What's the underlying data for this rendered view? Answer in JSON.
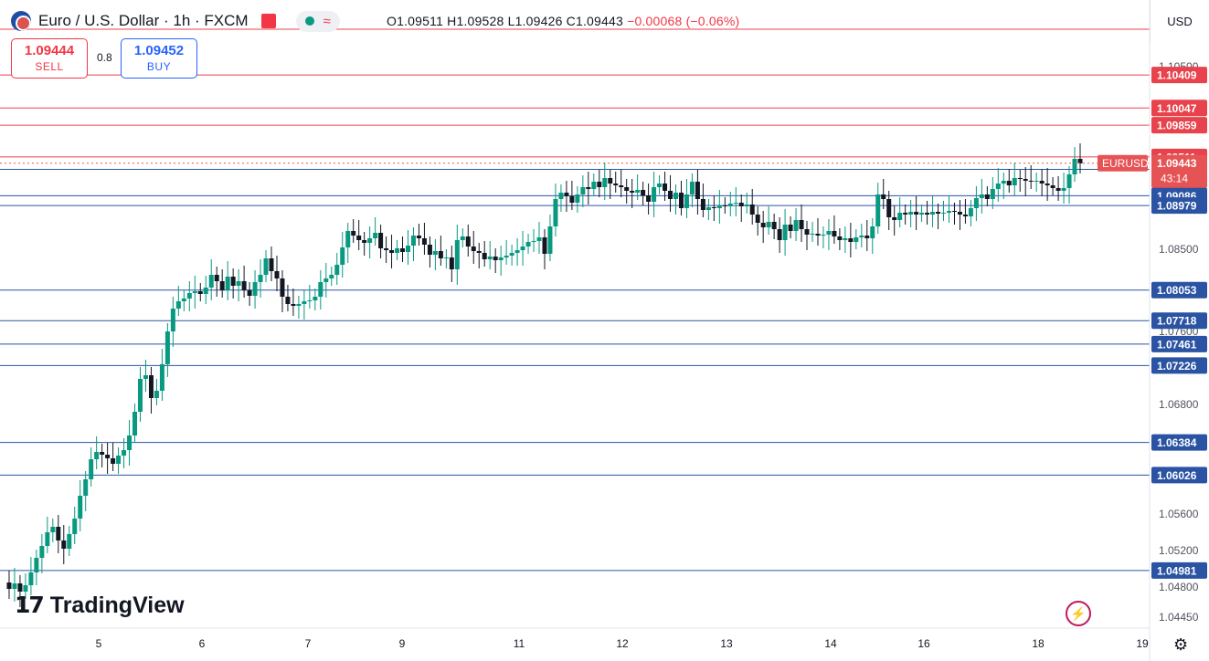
{
  "header": {
    "symbol_title": "Euro / U.S. Dollar · 1h · FXCM",
    "open": "O1.09511",
    "high": "H1.09528",
    "low": "L1.09426",
    "close": "C1.09443",
    "change": "−0.00068 (−0.06%)"
  },
  "trade": {
    "sell_price": "1.09444",
    "sell_label": "SELL",
    "spread": "0.8",
    "buy_price": "1.09452",
    "buy_label": "BUY"
  },
  "currency_label": "USD",
  "logo_text": "TradingView",
  "colors": {
    "up": "#089981",
    "down": "#131722",
    "resistance": "#e8434d",
    "support": "#2a53a3",
    "current": "#e65355"
  },
  "chart_data": {
    "type": "candlestick",
    "title": "Euro / U.S. Dollar · 1h · FXCM",
    "ylim": [
      1.0435,
      1.1095
    ],
    "y_ticks": [
      "1.10500",
      "1.08500",
      "1.07600",
      "1.06800",
      "1.05600",
      "1.05200",
      "1.04800",
      "1.04450"
    ],
    "x_ticks": [
      "5",
      "6",
      "7",
      "9",
      "11",
      "12",
      "13",
      "14",
      "16",
      "18",
      "19"
    ],
    "resistance_levels": [
      "1.10409",
      "1.10047",
      "1.09859",
      "1.09511"
    ],
    "support_levels": [
      "1.09375",
      "1.09086",
      "1.08979",
      "1.08053",
      "1.07718",
      "1.07461",
      "1.07226",
      "1.06384",
      "1.06026",
      "1.04981"
    ],
    "current": {
      "name": "EURUSD",
      "price": "1.09443",
      "countdown": "43:14"
    },
    "price_path": [
      [
        0,
        1.0485
      ],
      [
        6,
        1.0478
      ],
      [
        12,
        1.0484
      ],
      [
        18,
        1.0475
      ],
      [
        24,
        1.0482
      ],
      [
        30,
        1.0496
      ],
      [
        36,
        1.0512
      ],
      [
        42,
        1.0525
      ],
      [
        48,
        1.054
      ],
      [
        54,
        1.0546
      ],
      [
        60,
        1.0531
      ],
      [
        66,
        1.0522
      ],
      [
        72,
        1.0538
      ],
      [
        78,
        1.0555
      ],
      [
        84,
        1.058
      ],
      [
        90,
        1.0598
      ],
      [
        96,
        1.062
      ],
      [
        102,
        1.0628
      ],
      [
        108,
        1.0625
      ],
      [
        114,
        1.0621
      ],
      [
        120,
        1.0615
      ],
      [
        126,
        1.0624
      ],
      [
        132,
        1.063
      ],
      [
        138,
        1.0646
      ],
      [
        144,
        1.0672
      ],
      [
        150,
        1.0708
      ],
      [
        156,
        1.0712
      ],
      [
        162,
        1.0687
      ],
      [
        168,
        1.0695
      ],
      [
        174,
        1.0724
      ],
      [
        180,
        1.076
      ],
      [
        186,
        1.0785
      ],
      [
        192,
        1.0793
      ],
      [
        198,
        1.0796
      ],
      [
        204,
        1.0802
      ],
      [
        210,
        1.0804
      ],
      [
        216,
        1.0801
      ],
      [
        222,
        1.0808
      ],
      [
        228,
        1.0822
      ],
      [
        234,
        1.0815
      ],
      [
        240,
        1.0805
      ],
      [
        246,
        1.082
      ],
      [
        252,
        1.081
      ],
      [
        258,
        1.0815
      ],
      [
        264,
        1.0805
      ],
      [
        270,
        1.0799
      ],
      [
        276,
        1.0814
      ],
      [
        282,
        1.0822
      ],
      [
        288,
        1.084
      ],
      [
        294,
        1.0826
      ],
      [
        300,
        1.0818
      ],
      [
        306,
        1.0798
      ],
      [
        312,
        1.079
      ],
      [
        318,
        1.0788
      ],
      [
        324,
        1.079
      ],
      [
        330,
        1.0793
      ],
      [
        336,
        1.0794
      ],
      [
        342,
        1.0798
      ],
      [
        348,
        1.0814
      ],
      [
        354,
        1.0818
      ],
      [
        360,
        1.0822
      ],
      [
        366,
        1.0833
      ],
      [
        372,
        1.0852
      ],
      [
        378,
        1.087
      ],
      [
        384,
        1.0865
      ],
      [
        390,
        1.086
      ],
      [
        396,
        1.0857
      ],
      [
        402,
        1.0862
      ],
      [
        408,
        1.0868
      ],
      [
        414,
        1.0851
      ],
      [
        420,
        1.0849
      ],
      [
        426,
        1.0846
      ],
      [
        432,
        1.0851
      ],
      [
        438,
        1.0847
      ],
      [
        444,
        1.0854
      ],
      [
        450,
        1.0865
      ],
      [
        456,
        1.0862
      ],
      [
        462,
        1.0855
      ],
      [
        468,
        1.0844
      ],
      [
        474,
        1.0848
      ],
      [
        480,
        1.084
      ],
      [
        486,
        1.0841
      ],
      [
        492,
        1.0828
      ],
      [
        498,
        1.086
      ],
      [
        504,
        1.0864
      ],
      [
        510,
        1.0853
      ],
      [
        516,
        1.0848
      ],
      [
        522,
        1.0846
      ],
      [
        528,
        1.0839
      ],
      [
        534,
        1.0842
      ],
      [
        540,
        1.0838
      ],
      [
        546,
        1.0841
      ],
      [
        552,
        1.0843
      ],
      [
        558,
        1.0846
      ],
      [
        564,
        1.0849
      ],
      [
        570,
        1.0853
      ],
      [
        576,
        1.0858
      ],
      [
        582,
        1.0859
      ],
      [
        588,
        1.0863
      ],
      [
        594,
        1.0845
      ],
      [
        600,
        1.0875
      ],
      [
        606,
        1.0905
      ],
      [
        612,
        1.0912
      ],
      [
        618,
        1.0908
      ],
      [
        624,
        1.0901
      ],
      [
        630,
        1.091
      ],
      [
        636,
        1.0918
      ],
      [
        642,
        1.0916
      ],
      [
        648,
        1.0924
      ],
      [
        654,
        1.0918
      ],
      [
        660,
        1.0928
      ],
      [
        666,
        1.0922
      ],
      [
        672,
        1.092
      ],
      [
        678,
        1.0918
      ],
      [
        684,
        1.0914
      ],
      [
        690,
        1.0912
      ],
      [
        696,
        1.0915
      ],
      [
        702,
        1.0909
      ],
      [
        708,
        1.0902
      ],
      [
        714,
        1.0918
      ],
      [
        720,
        1.0922
      ],
      [
        726,
        1.0914
      ],
      [
        732,
        1.0905
      ],
      [
        738,
        1.0912
      ],
      [
        744,
        1.0895
      ],
      [
        750,
        1.091
      ],
      [
        756,
        1.0924
      ],
      [
        762,
        1.0905
      ],
      [
        768,
        1.0893
      ],
      [
        774,
        1.0896
      ],
      [
        780,
        1.0895
      ],
      [
        786,
        1.0898
      ],
      [
        792,
        1.0897
      ],
      [
        798,
        1.09
      ],
      [
        804,
        1.0901
      ],
      [
        810,
        1.0897
      ],
      [
        816,
        1.0899
      ],
      [
        822,
        1.0888
      ],
      [
        828,
        1.0879
      ],
      [
        834,
        1.0874
      ],
      [
        840,
        1.088
      ],
      [
        846,
        1.0872
      ],
      [
        852,
        1.086
      ],
      [
        858,
        1.0877
      ],
      [
        864,
        1.087
      ],
      [
        870,
        1.0882
      ],
      [
        876,
        1.0872
      ],
      [
        882,
        1.0866
      ],
      [
        888,
        1.0867
      ],
      [
        894,
        1.0865
      ],
      [
        900,
        1.0866
      ],
      [
        906,
        1.087
      ],
      [
        912,
        1.0864
      ],
      [
        918,
        1.086
      ],
      [
        924,
        1.0862
      ],
      [
        930,
        1.0858
      ],
      [
        936,
        1.0863
      ],
      [
        942,
        1.0865
      ],
      [
        948,
        1.0862
      ],
      [
        954,
        1.0875
      ],
      [
        960,
        1.091
      ],
      [
        966,
        1.0905
      ],
      [
        972,
        1.0885
      ],
      [
        978,
        1.0882
      ],
      [
        984,
        1.089
      ],
      [
        990,
        1.0888
      ],
      [
        996,
        1.0891
      ],
      [
        1002,
        1.0888
      ],
      [
        1008,
        1.089
      ],
      [
        1014,
        1.0888
      ],
      [
        1020,
        1.0891
      ],
      [
        1026,
        1.0889
      ],
      [
        1032,
        1.089
      ],
      [
        1038,
        1.0892
      ],
      [
        1044,
        1.0891
      ],
      [
        1050,
        1.0888
      ],
      [
        1056,
        1.0886
      ],
      [
        1062,
        1.0895
      ],
      [
        1068,
        1.0906
      ],
      [
        1074,
        1.091
      ],
      [
        1080,
        1.0905
      ],
      [
        1086,
        1.0916
      ],
      [
        1092,
        1.0922
      ],
      [
        1098,
        1.0925
      ],
      [
        1104,
        1.092
      ],
      [
        1110,
        1.0928
      ],
      [
        1116,
        1.0927
      ],
      [
        1122,
        1.0925
      ],
      [
        1128,
        1.0924
      ],
      [
        1134,
        1.0925
      ],
      [
        1140,
        1.0922
      ],
      [
        1146,
        1.092
      ],
      [
        1152,
        1.0917
      ],
      [
        1158,
        1.0914
      ],
      [
        1164,
        1.0917
      ],
      [
        1170,
        1.0932
      ],
      [
        1176,
        1.0949
      ],
      [
        1182,
        1.0944
      ]
    ]
  }
}
